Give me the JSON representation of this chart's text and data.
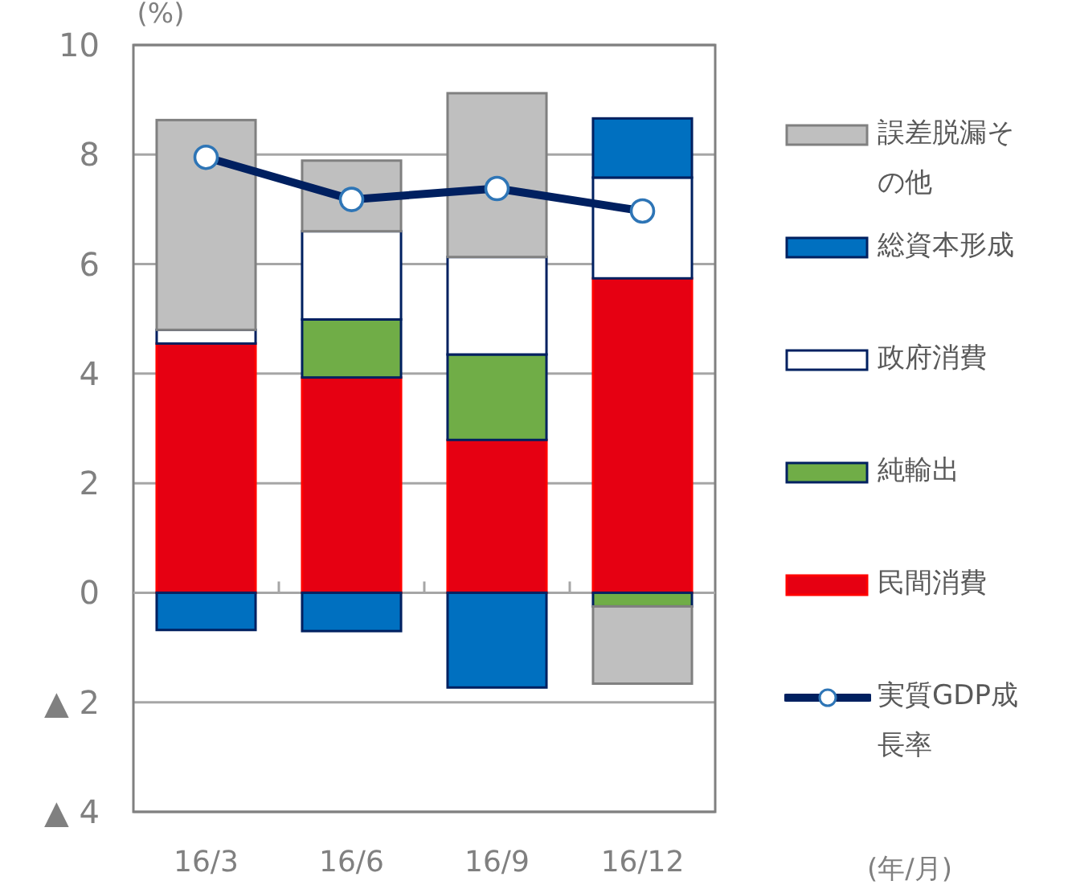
{
  "chart_data": {
    "type": "bar",
    "stacked": true,
    "ylabel": "(%)",
    "annotations": [
      "(年/月)"
    ],
    "categories": [
      "16/3",
      "16/6",
      "16/9",
      "16/12"
    ],
    "ylim": [
      -4,
      10
    ],
    "yticks": [
      {
        "value": -4,
        "label": "▲ 4"
      },
      {
        "value": -2,
        "label": "▲ 2"
      },
      0,
      2,
      4,
      6,
      8,
      10
    ],
    "grid": "y",
    "legend": "right",
    "series": [
      {
        "name": "民間消費",
        "color": "#e60012",
        "values": [
          4.55,
          3.93,
          2.79,
          5.74
        ]
      },
      {
        "name": "純輸出",
        "color": "#70ad47",
        "values": [
          null,
          1.06,
          1.56,
          -0.25
        ]
      },
      {
        "name": "政府消費",
        "color": "#ffffff",
        "values": [
          0.25,
          1.61,
          1.78,
          1.84
        ]
      },
      {
        "name": "総資本形成",
        "color": "#0070c0",
        "values": [
          -0.68,
          -0.7,
          -1.73,
          1.08
        ]
      },
      {
        "name": "誤差脱漏その他",
        "color": "#bfbfbf",
        "values": [
          3.83,
          1.29,
          2.99,
          -1.41
        ]
      },
      {
        "name": "実質GDP成長率",
        "type": "line",
        "marker": "circle",
        "color": "#002060",
        "values": [
          7.95,
          7.18,
          7.38,
          6.97
        ]
      }
    ]
  }
}
